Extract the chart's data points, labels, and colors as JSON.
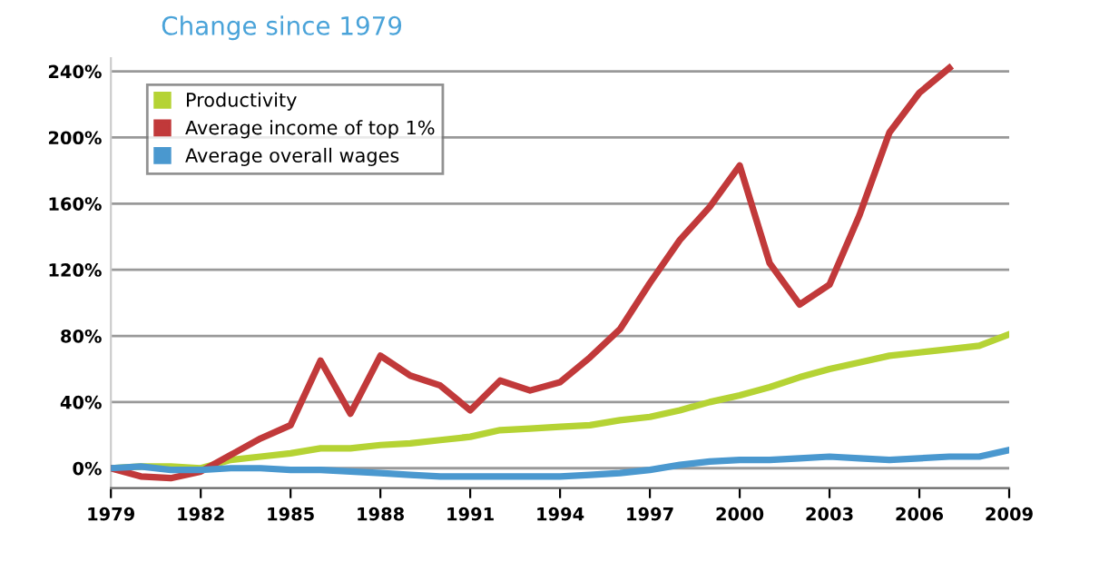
{
  "chart_data": {
    "type": "line",
    "title": "Change since 1979",
    "x": [
      1979,
      1980,
      1981,
      1982,
      1983,
      1984,
      1985,
      1986,
      1987,
      1988,
      1989,
      1990,
      1991,
      1992,
      1993,
      1994,
      1995,
      1996,
      1997,
      1998,
      1999,
      2000,
      2001,
      2002,
      2003,
      2004,
      2005,
      2006,
      2007,
      2008,
      2009
    ],
    "series": [
      {
        "name": "Productivity",
        "color": "#b5d334",
        "values": [
          0,
          1,
          1,
          0,
          5,
          7,
          9,
          12,
          12,
          14,
          15,
          17,
          19,
          23,
          24,
          25,
          26,
          29,
          31,
          35,
          40,
          44,
          49,
          55,
          60,
          64,
          68,
          70,
          72,
          74,
          81
        ]
      },
      {
        "name": "Average income of top 1%",
        "color": "#c1393a",
        "values": [
          0,
          -5,
          -6,
          -2,
          8,
          18,
          26,
          65,
          33,
          68,
          56,
          50,
          35,
          53,
          47,
          52,
          67,
          84,
          112,
          138,
          158,
          183,
          124,
          99,
          111,
          153,
          203,
          227,
          242,
          null,
          null
        ]
      },
      {
        "name": "Average overall wages",
        "color": "#4a98cf",
        "values": [
          0,
          1,
          -1,
          -1,
          0,
          0,
          -1,
          -1,
          -2,
          -3,
          -4,
          -5,
          -5,
          -5,
          -5,
          -5,
          -4,
          -3,
          -1,
          2,
          4,
          5,
          5,
          6,
          7,
          6,
          5,
          6,
          7,
          7,
          11
        ]
      }
    ],
    "xlim": [
      1979,
      2009
    ],
    "xticks": [
      1979,
      1982,
      1985,
      1988,
      1991,
      1994,
      1997,
      2000,
      2003,
      2006,
      2009
    ],
    "ylim": [
      -12,
      248
    ],
    "yticks": [
      {
        "value": 0,
        "label": "0%"
      },
      {
        "value": 40,
        "label": "40%"
      },
      {
        "value": 80,
        "label": "80%"
      },
      {
        "value": 120,
        "label": "120%"
      },
      {
        "value": 160,
        "label": "160%"
      },
      {
        "value": 200,
        "label": "200%"
      },
      {
        "value": 240,
        "label": "240%"
      }
    ],
    "grid": "y",
    "legend": "top left",
    "marker": "none",
    "line_style": "solid"
  }
}
